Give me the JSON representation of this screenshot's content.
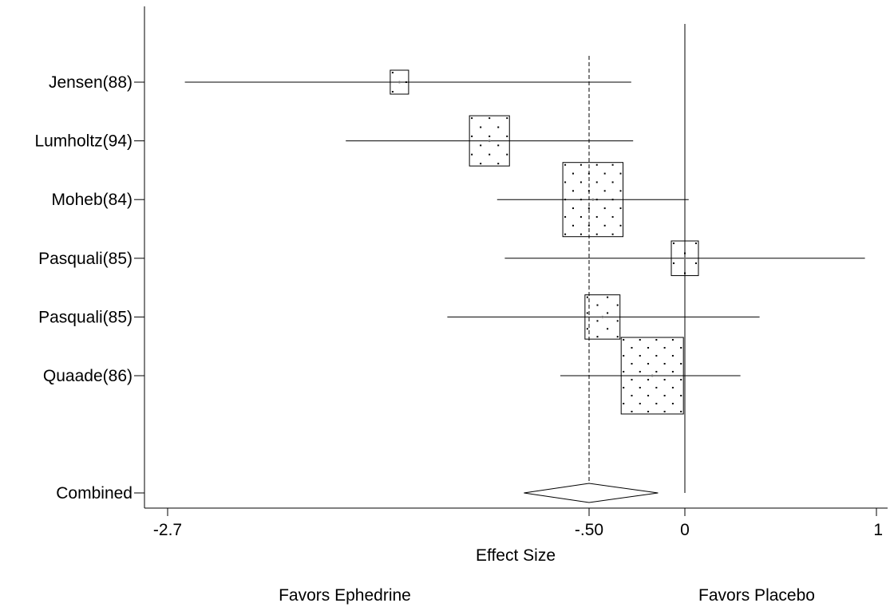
{
  "chart_data": {
    "type": "forest",
    "title": "",
    "xlabel": "Effect Size",
    "xlim": [
      -2.7,
      1
    ],
    "x_ticks": [
      {
        "value": -2.7,
        "label": "-2.7"
      },
      {
        "value": -0.5,
        "label": "-.50"
      },
      {
        "value": 0,
        "label": "0"
      },
      {
        "value": 1,
        "label": "1"
      }
    ],
    "null_line": 0,
    "combined_line": -0.5,
    "favors_left": "Favors Ephedrine",
    "favors_right": "Favors Placebo",
    "studies": [
      {
        "label": "Jensen(88)",
        "effect": -1.49,
        "ci": [
          -2.61,
          -0.28
        ],
        "weight": 1.0
      },
      {
        "label": "Lumholtz(94)",
        "effect": -1.02,
        "ci": [
          -1.77,
          -0.27
        ],
        "weight": 2.1
      },
      {
        "label": "Moheb(84)",
        "effect": -0.48,
        "ci": [
          -0.98,
          0.02
        ],
        "weight": 3.1
      },
      {
        "label": "Pasquali(85)",
        "effect": 0.0,
        "ci": [
          -0.94,
          0.94
        ],
        "weight": 1.45
      },
      {
        "label": "Pasquali(85)",
        "effect": -0.43,
        "ci": [
          -1.24,
          0.39
        ],
        "weight": 1.85
      },
      {
        "label": "Quaade(86)",
        "effect": -0.17,
        "ci": [
          -0.65,
          0.29
        ],
        "weight": 3.2
      }
    ],
    "combined": {
      "label": "Combined",
      "effect": -0.5,
      "ci": [
        -0.84,
        -0.14
      ]
    }
  }
}
